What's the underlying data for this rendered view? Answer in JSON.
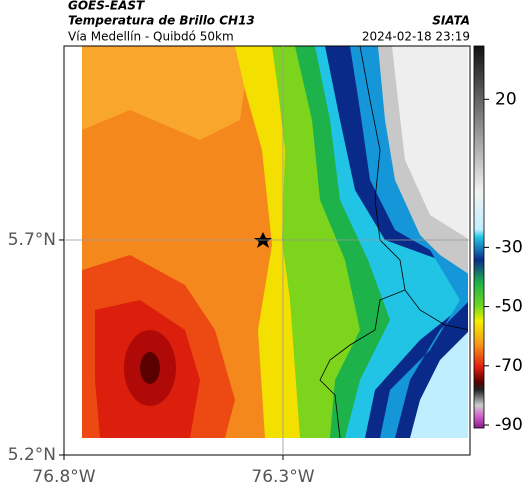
{
  "header": {
    "title": "GOES-EAST",
    "subtitle": "Temperatura de Brillo CH13",
    "location": "Vía Medellín - Quibdó 50km",
    "source": "SIATA",
    "timestamp": "2024-02-18 23:19"
  },
  "map": {
    "xlim": [
      -76.8,
      -75.873
    ],
    "ylim": [
      5.2,
      6.151
    ],
    "xticks": [
      {
        "value": -76.8,
        "label": "76.8°W"
      },
      {
        "value": -76.3,
        "label": "76.3°W"
      }
    ],
    "yticks": [
      {
        "value": 5.7,
        "label": "5.7°N"
      },
      {
        "value": 5.2,
        "label": "5.2°N"
      }
    ],
    "grid": true
  },
  "colorbar": {
    "lim": [
      -91,
      38
    ],
    "ticks": [
      20,
      -30,
      -50,
      -70,
      -90
    ]
  }
}
